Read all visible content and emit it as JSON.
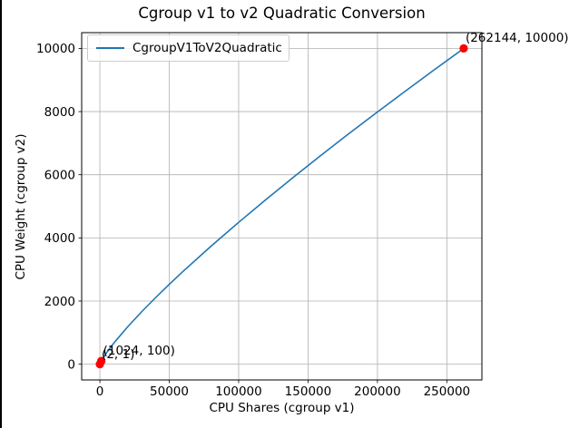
{
  "chart_data": {
    "type": "line",
    "title": "Cgroup v1 to v2 Quadratic Conversion",
    "xlabel": "CPU Shares (cgroup v1)",
    "ylabel": "CPU Weight (cgroup v2)",
    "xlim": [
      -13107,
      275251
    ],
    "ylim": [
      -499,
      10500
    ],
    "xticks": [
      0,
      50000,
      100000,
      150000,
      200000,
      250000
    ],
    "yticks": [
      0,
      2000,
      4000,
      6000,
      8000,
      10000
    ],
    "grid": true,
    "grid_color": "#b0b0b0",
    "marker_color": "#ff0000",
    "legend": {
      "position": "upper left",
      "entries": [
        {
          "label": "CgroupV1ToV2Quadratic",
          "color": "#1f77b4"
        }
      ]
    },
    "series": [
      {
        "name": "CgroupV1ToV2Quadratic",
        "color": "#1f77b4",
        "x": [
          2,
          1024,
          5000,
          10000,
          20000,
          30000,
          40000,
          50000,
          60000,
          80000,
          100000,
          120000,
          140000,
          160000,
          180000,
          200000,
          220000,
          240000,
          262144
        ],
        "y": [
          1,
          100,
          374,
          665,
          1182,
          1654,
          2100,
          2528,
          2941,
          3734,
          4493,
          5228,
          5941,
          6638,
          7320,
          7988,
          8646,
          9294,
          10000
        ]
      }
    ],
    "markers": [
      {
        "x": 2,
        "y": 1,
        "label": "(2, 1)"
      },
      {
        "x": 1024,
        "y": 100,
        "label": "(1024, 100)"
      },
      {
        "x": 262144,
        "y": 10000,
        "label": "(262144, 10000)"
      }
    ]
  }
}
